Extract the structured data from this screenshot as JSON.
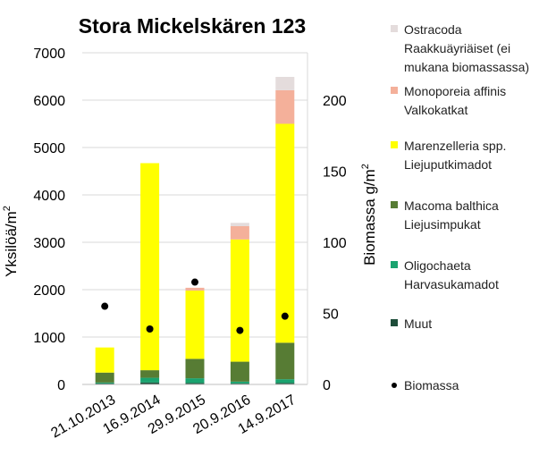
{
  "chart_data": {
    "type": "bar",
    "subtype": "stacked-bar-with-secondary-scatter",
    "title": "Stora Mickelskären 123",
    "ylabel": "Yksilöä/m²",
    "y2label": "Biomassa g/m²",
    "xlabel": "",
    "categories": [
      "21.10.2013",
      "16.9.2014",
      "29.9.2015",
      "20.9.2016",
      "14.9.2017"
    ],
    "ylim": [
      0,
      7000
    ],
    "yticks": [
      0,
      1000,
      2000,
      3000,
      4000,
      5000,
      6000,
      7000
    ],
    "y2lim": [
      0,
      233.33
    ],
    "y2ticks": [
      0,
      50,
      100,
      150,
      200
    ],
    "grid": true,
    "legend_position": "right",
    "series": [
      {
        "name": "Muut",
        "color": "#1e4d3a",
        "values": [
          20,
          40,
          30,
          20,
          30
        ]
      },
      {
        "name": "Oligochaeta Harvasukamadot",
        "color": "#1aa36f",
        "values": [
          20,
          100,
          100,
          40,
          80
        ]
      },
      {
        "name": "Macoma balthica Liejusimpukat",
        "color": "#577c34",
        "values": [
          210,
          160,
          410,
          420,
          770
        ]
      },
      {
        "name": "Marenzelleria spp. Liejuputkimadot",
        "color": "#ffff00",
        "values": [
          530,
          4370,
          1440,
          2580,
          4620
        ]
      },
      {
        "name": "Monoporeia affinis Valkokatkat",
        "color": "#f4b09a",
        "values": [
          0,
          0,
          60,
          280,
          710
        ]
      },
      {
        "name": "Ostracoda Raakkuäyriäiset (ei mukana biomassassa)",
        "color": "#e4dcdc",
        "values": [
          0,
          0,
          0,
          70,
          280
        ]
      }
    ],
    "secondary_series": [
      {
        "name": "Biomassa",
        "type": "scatter",
        "axis": "y2",
        "color": "#000000",
        "values": [
          55,
          39,
          72,
          38,
          48
        ]
      }
    ]
  },
  "legend": {
    "items": [
      {
        "label": "Ostracoda Raakkuäyriäiset (ei mukana biomassassa)",
        "lines": [
          "Ostracoda",
          "Raakkuäyriäiset (ei",
          "mukana biomassassa)"
        ],
        "color": "#e4dcdc",
        "kind": "square"
      },
      {
        "label": "Monoporeia affinis Valkokatkat",
        "lines": [
          "Monoporeia affinis",
          "Valkokatkat"
        ],
        "color": "#f4b09a",
        "kind": "square"
      },
      {
        "label": "Marenzelleria spp. Liejuputkimadot",
        "lines": [
          "Marenzelleria spp.",
          "Liejuputkimadot"
        ],
        "color": "#ffff00",
        "kind": "square"
      },
      {
        "label": "Macoma balthica Liejusimpukat",
        "lines": [
          "Macoma balthica",
          "Liejusimpukat"
        ],
        "color": "#577c34",
        "kind": "square"
      },
      {
        "label": "Oligochaeta Harvasukamadot",
        "lines": [
          "Oligochaeta",
          "Harvasukamadot"
        ],
        "color": "#1aa36f",
        "kind": "square"
      },
      {
        "label": "Muut",
        "lines": [
          "Muut"
        ],
        "color": "#1e4d3a",
        "kind": "square"
      },
      {
        "label": "Biomassa",
        "lines": [
          "Biomassa"
        ],
        "color": "#000000",
        "kind": "dot"
      }
    ]
  }
}
